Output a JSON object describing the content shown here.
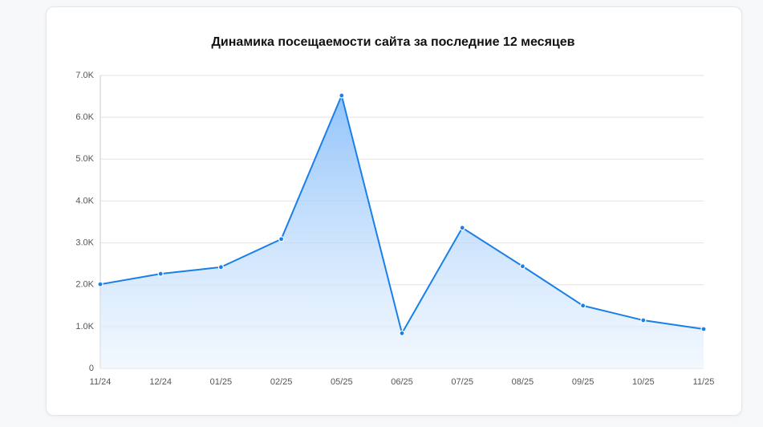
{
  "chart_data": {
    "type": "area",
    "title": "Динамика посещаемости сайта за последние 12 месяцев",
    "categories": [
      "11/24",
      "12/24",
      "01/25",
      "02/25",
      "05/25",
      "06/25",
      "07/25",
      "08/25",
      "09/25",
      "10/25",
      "11/25"
    ],
    "series": [
      {
        "color": "#1a7fe8",
        "values": [
          2010,
          2260,
          2420,
          3090,
          6520,
          840,
          3360,
          2440,
          1500,
          1150,
          940
        ]
      }
    ],
    "ylim": [
      0,
      7000
    ],
    "yticks": [
      0,
      {
        "value": 1000,
        "label": "1.0K"
      },
      {
        "value": 2000,
        "label": "2.0K"
      },
      {
        "value": 3000,
        "label": "3.0K"
      },
      {
        "value": 4000,
        "label": "4.0K"
      },
      {
        "value": 5000,
        "label": "5.0K"
      },
      {
        "value": 6000,
        "label": "6.0K"
      },
      {
        "value": 7000,
        "label": "7.0K"
      }
    ],
    "grid": true
  }
}
